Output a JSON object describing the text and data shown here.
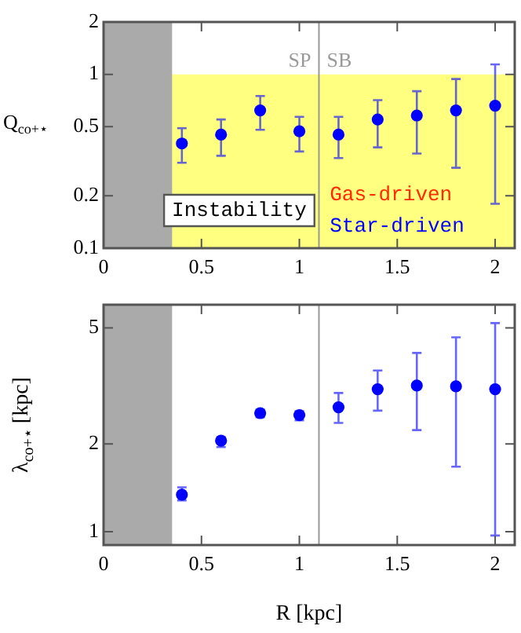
{
  "chart_data": [
    {
      "type": "scatter",
      "ylabel": "Q$_{co+⋆}$",
      "log": "y",
      "grid": false,
      "legend": false,
      "marker": "circle",
      "xlim": [
        0,
        2.1
      ],
      "xticks": [
        0,
        0.5,
        1,
        1.5,
        2
      ],
      "ylim": [
        0.1,
        2
      ],
      "yticks": [
        0.1,
        0.2,
        0.5,
        1,
        2
      ],
      "series": [
        {
          "color": "#0000ff",
          "x": [
            0.4,
            0.6,
            0.8,
            1.0,
            1.2,
            1.4,
            1.6,
            1.8,
            2.0
          ],
          "values": [
            0.4,
            0.45,
            0.62,
            0.47,
            0.45,
            0.55,
            0.58,
            0.62,
            0.66
          ],
          "errors": [
            [
              0.31,
              0.49
            ],
            [
              0.34,
              0.55
            ],
            [
              0.48,
              0.75
            ],
            [
              0.36,
              0.57
            ],
            [
              0.33,
              0.57
            ],
            [
              0.38,
              0.71
            ],
            [
              0.35,
              0.8
            ],
            [
              0.29,
              0.94
            ],
            [
              0.18,
              1.14
            ]
          ]
        }
      ],
      "bands": [
        {
          "axis": "y",
          "from": 0.1,
          "to": 1,
          "color": "#ffff80"
        },
        {
          "axis": "x",
          "from": 0,
          "to": 0.35,
          "color": "#aaaaaa"
        }
      ],
      "ref_lines": [
        {
          "axis": "x",
          "value": 1.1,
          "color": "#999999"
        }
      ],
      "annotations": [
        "SP",
        "SB",
        "Instability",
        "Gas-driven",
        "Star-driven"
      ]
    },
    {
      "type": "scatter",
      "xlabel": "R [kpc]",
      "ylabel": "λ$_{co+⋆}$ [kpc]",
      "log": "y",
      "grid": false,
      "legend": false,
      "marker": "circle",
      "xlim": [
        0,
        2.1
      ],
      "xticks": [
        0,
        0.5,
        1,
        1.5,
        2
      ],
      "ylim": [
        0.9,
        6
      ],
      "yticks": [
        1,
        2,
        5
      ],
      "series": [
        {
          "color": "#0000ff",
          "x": [
            0.4,
            0.6,
            0.8,
            1.0,
            1.2,
            1.4,
            1.6,
            1.8,
            2.0
          ],
          "values": [
            1.34,
            2.05,
            2.55,
            2.51,
            2.67,
            3.08,
            3.17,
            3.15,
            3.08
          ],
          "errors": [
            [
              1.28,
              1.42
            ],
            [
              1.95,
              2.11
            ],
            [
              2.47,
              2.62
            ],
            [
              2.41,
              2.59
            ],
            [
              2.36,
              2.99
            ],
            [
              2.6,
              3.57
            ],
            [
              2.23,
              4.1
            ],
            [
              1.67,
              4.64
            ],
            [
              0.97,
              5.19
            ]
          ]
        }
      ],
      "bands": [
        {
          "axis": "x",
          "from": 0,
          "to": 0.35,
          "color": "#aaaaaa"
        }
      ],
      "ref_lines": [
        {
          "axis": "x",
          "value": 1.1,
          "color": "#999999"
        }
      ]
    }
  ]
}
